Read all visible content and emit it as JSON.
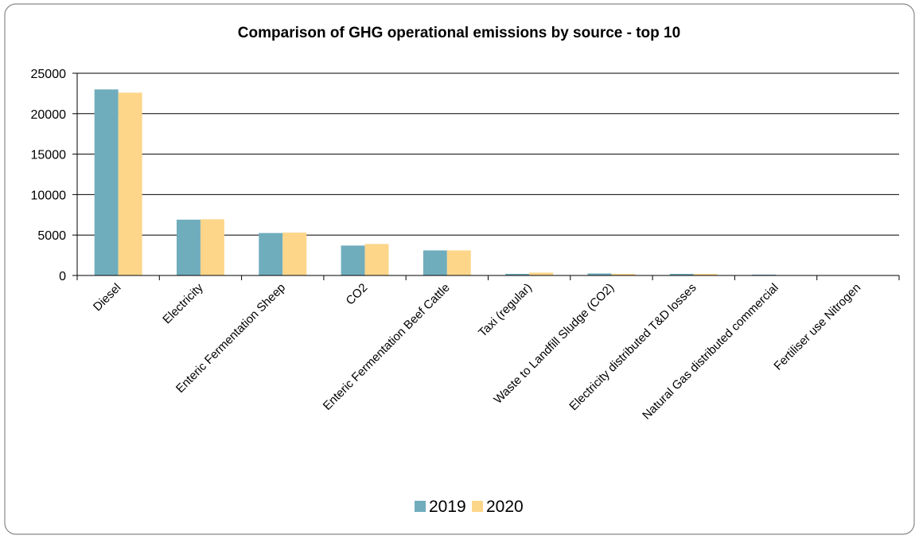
{
  "chart_data": {
    "type": "bar",
    "title": "Comparison of GHG operational emissions by source - top 10",
    "categories": [
      "Diesel",
      "Electricity",
      "Enteric Fermentation Sheep",
      "CO2",
      "Enteric Fermentation Beef Cattle",
      "Taxi (regular)",
      "Waste to Landfill Sludge (CO2)",
      "Electricity distributed T&D losses",
      "Natural Gas distributed commercial",
      "Fertiliser use Nitrogen"
    ],
    "series": [
      {
        "name": "2019",
        "color": "#6fadbd",
        "values": [
          23000,
          6900,
          5250,
          3700,
          3100,
          200,
          250,
          200,
          100,
          20
        ]
      },
      {
        "name": "2020",
        "color": "#fdd68a",
        "values": [
          22600,
          6950,
          5300,
          3900,
          3100,
          350,
          200,
          200,
          50,
          20
        ]
      }
    ],
    "ylim": [
      0,
      25000
    ],
    "yticks": [
      0,
      5000,
      10000,
      15000,
      20000,
      25000
    ],
    "grid": true,
    "legend": "bottom"
  }
}
